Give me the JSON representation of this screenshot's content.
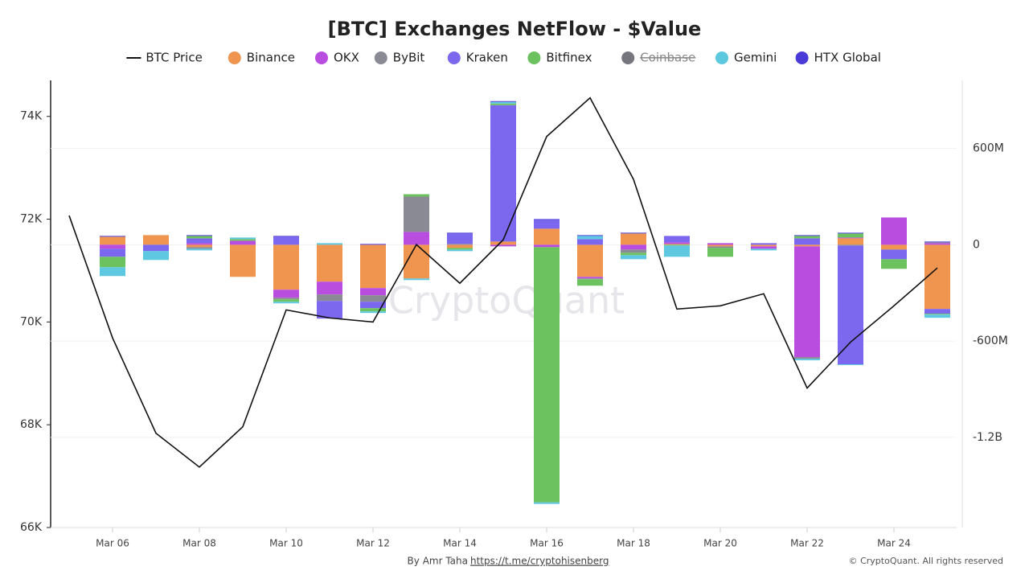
{
  "chart_data": {
    "type": "bar",
    "title": "[BTC] Exchanges NetFlow - $Value",
    "categories": [
      null,
      "Mar 06",
      null,
      "Mar 08",
      null,
      "Mar 10",
      null,
      "Mar 12",
      null,
      "Mar 14",
      null,
      "Mar 16",
      null,
      "Mar 18",
      null,
      "Mar 20",
      null,
      "Mar 22",
      null,
      "Mar 24",
      null
    ],
    "stacked": true,
    "series": [
      {
        "name": "BTC Price",
        "type": "line",
        "axis": "y",
        "color": "#111111",
        "values": [
          72070,
          69690,
          67835,
          67176,
          67961,
          70235,
          70078,
          70000,
          71506,
          70753,
          71600,
          73608,
          74361,
          72776,
          70251,
          70314,
          70549,
          68714,
          69608,
          70314,
          71051
        ]
      },
      {
        "name": "Binance",
        "axis": "y2",
        "color": "#f0954f",
        "values": [
          null,
          50,
          60,
          -15,
          -200,
          -280,
          -230,
          -270,
          -210,
          -20,
          20,
          100,
          -200,
          70,
          5,
          -10,
          -10,
          -10,
          40,
          -30,
          -400
        ]
      },
      {
        "name": "OKX",
        "axis": "y2",
        "color": "#b94de0",
        "values": [
          null,
          -25,
          0,
          10,
          25,
          -50,
          -80,
          -45,
          80,
          0,
          -10,
          -15,
          -10,
          -30,
          10,
          10,
          -15,
          -690,
          5,
          170,
          10
        ]
      },
      {
        "name": "ByBit",
        "axis": "y2",
        "color": "#8a8a94",
        "values": [
          null,
          0,
          0,
          -10,
          0,
          -10,
          -40,
          -40,
          220,
          5,
          0,
          0,
          -5,
          -20,
          0,
          -10,
          0,
          -10,
          -5,
          0,
          5
        ]
      },
      {
        "name": "Kraken",
        "axis": "y2",
        "color": "#7b68ee",
        "values": [
          null,
          -50,
          -40,
          30,
          0,
          50,
          -110,
          -40,
          0,
          65,
          850,
          55,
          35,
          0,
          40,
          0,
          10,
          40,
          -740,
          -60,
          -30
        ]
      },
      {
        "name": "Bitfinex",
        "axis": "y2",
        "color": "#6cc25e",
        "values": [
          null,
          -65,
          0,
          15,
          10,
          -15,
          0,
          -20,
          15,
          -10,
          10,
          -1590,
          -40,
          -15,
          -5,
          -55,
          0,
          15,
          25,
          -60,
          -5
        ]
      },
      {
        "name": "Coinbase",
        "axis": "y2",
        "color": "#75757e",
        "hidden": true
      },
      {
        "name": "Gemini",
        "axis": "y2",
        "color": "#5ec8e0",
        "values": [
          null,
          -55,
          -55,
          -10,
          10,
          -10,
          10,
          -10,
          -10,
          -10,
          10,
          -10,
          20,
          -25,
          -70,
          0,
          -10,
          -10,
          -5,
          0,
          -20
        ]
      },
      {
        "name": "HTX Global",
        "axis": "y2",
        "color": "#4a3ad6",
        "values": [
          null,
          5,
          0,
          5,
          0,
          5,
          0,
          5,
          0,
          5,
          5,
          5,
          5,
          5,
          0,
          0,
          0,
          5,
          5,
          0,
          5
        ]
      }
    ],
    "ylim": [
      66000,
      74700
    ],
    "yticks": [
      {
        "value": 66000,
        "label": "66K"
      },
      {
        "value": 68000,
        "label": "68K"
      },
      {
        "value": 70000,
        "label": "70K"
      },
      {
        "value": 72000,
        "label": "72K"
      },
      {
        "value": 74000,
        "label": "74K"
      }
    ],
    "y2lim": [
      -1762,
      1024
    ],
    "y2ticks": [
      {
        "value": -1200,
        "label": "-1.2B"
      },
      {
        "value": -600,
        "label": "-600M"
      },
      0,
      {
        "value": 600,
        "label": "600M"
      }
    ],
    "grid": true,
    "watermark": "CryptoQuant",
    "credit": "By Amr Taha",
    "credit_link": "https://t.me/cryptohisenberg",
    "copyright": "© CryptoQuant. All rights reserved"
  }
}
